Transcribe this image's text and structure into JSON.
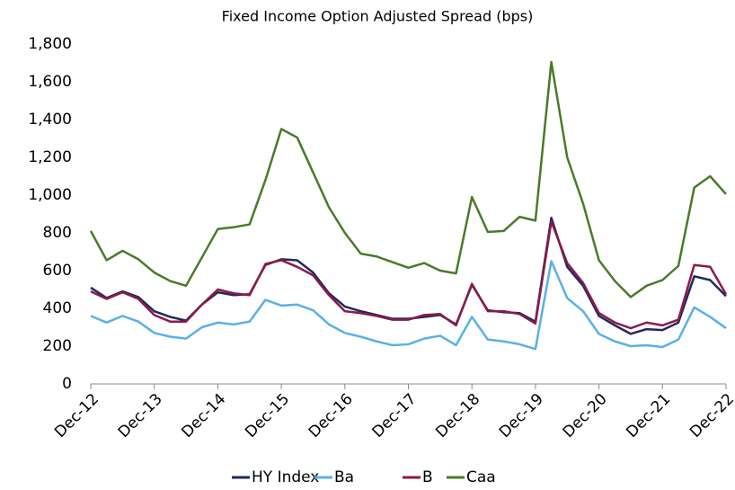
{
  "chart_data": {
    "type": "line",
    "title": "Fixed Income Option Adjusted Spread (bps)",
    "categories": [
      "Dec-12",
      null,
      null,
      null,
      "Dec-13",
      null,
      null,
      null,
      "Dec-14",
      null,
      null,
      null,
      "Dec-15",
      null,
      null,
      null,
      "Dec-16",
      null,
      null,
      null,
      "Dec-17",
      null,
      null,
      null,
      "Dec-18",
      null,
      null,
      null,
      "Dec-19",
      null,
      null,
      null,
      "Dec-20",
      null,
      null,
      null,
      "Dec-21",
      null,
      null,
      null,
      "Dec-22"
    ],
    "series": [
      {
        "name": "HY Index",
        "color": "#1f2a5c",
        "values": [
          510,
          455,
          490,
          460,
          385,
          355,
          335,
          420,
          485,
          470,
          475,
          630,
          660,
          655,
          590,
          480,
          410,
          385,
          365,
          345,
          345,
          355,
          365,
          315,
          525,
          390,
          380,
          375,
          330,
          880,
          620,
          520,
          360,
          310,
          265,
          290,
          285,
          325,
          570,
          550,
          465
        ]
      },
      {
        "name": "Ba",
        "color": "#5ab0e6",
        "values": [
          360,
          325,
          360,
          330,
          270,
          250,
          240,
          300,
          325,
          315,
          330,
          445,
          415,
          420,
          390,
          315,
          270,
          250,
          225,
          205,
          210,
          240,
          255,
          205,
          355,
          235,
          225,
          210,
          185,
          650,
          455,
          385,
          265,
          225,
          200,
          205,
          195,
          235,
          405,
          355,
          295
        ]
      },
      {
        "name": "B",
        "color": "#8b1a4a",
        "values": [
          490,
          450,
          485,
          450,
          365,
          330,
          330,
          420,
          500,
          480,
          470,
          635,
          655,
          620,
          575,
          470,
          385,
          375,
          360,
          340,
          340,
          365,
          370,
          310,
          530,
          385,
          385,
          370,
          320,
          860,
          640,
          535,
          375,
          325,
          295,
          325,
          310,
          340,
          630,
          620,
          475
        ]
      },
      {
        "name": "Caa",
        "color": "#4a7a2a",
        "values": [
          810,
          655,
          705,
          660,
          590,
          545,
          520,
          670,
          820,
          830,
          845,
          1080,
          1350,
          1305,
          1120,
          935,
          800,
          690,
          675,
          645,
          615,
          640,
          600,
          585,
          990,
          805,
          810,
          885,
          865,
          1705,
          1200,
          955,
          655,
          545,
          460,
          520,
          550,
          625,
          1040,
          1100,
          1005
        ]
      }
    ],
    "ylim": [
      0,
      1800
    ],
    "yticks": [
      0,
      200,
      400,
      600,
      800,
      {
        "value": 1000,
        "label": "1,000"
      },
      {
        "value": 1200,
        "label": "1,200"
      },
      {
        "value": 1400,
        "label": "1,400"
      },
      {
        "value": 1600,
        "label": "1,600"
      },
      {
        "value": 1800,
        "label": "1,800"
      }
    ],
    "grid": false,
    "legend": "bottom"
  }
}
